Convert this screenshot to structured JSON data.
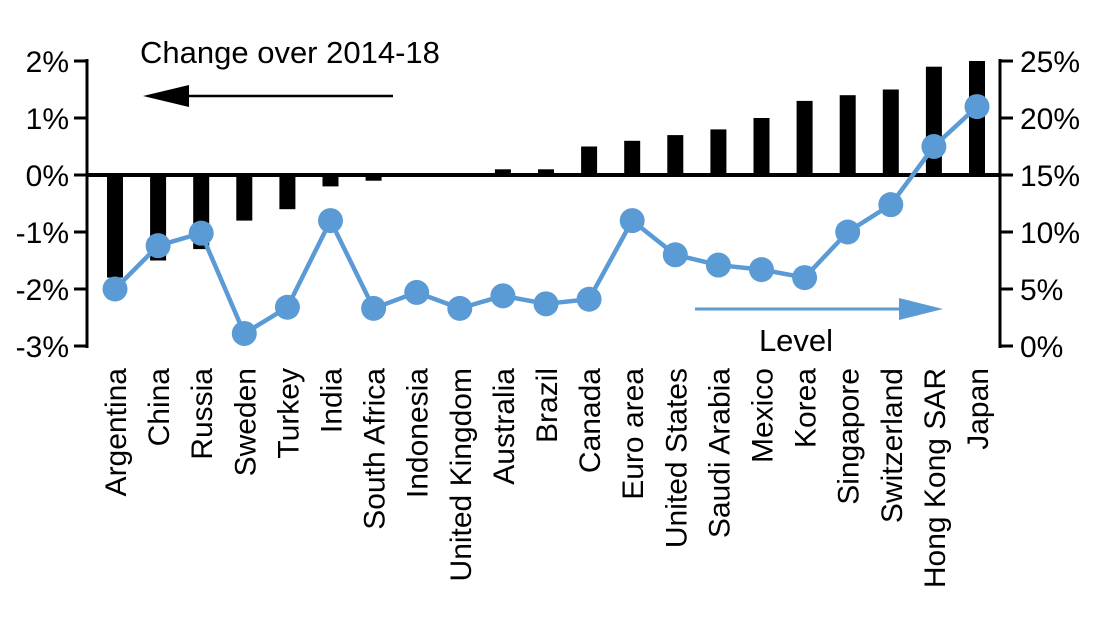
{
  "chart_data": {
    "type": "bar",
    "subtype": "combo-bar-line-dual-axis",
    "categories": [
      "Argentina",
      "China",
      "Russia",
      "Sweden",
      "Turkey",
      "India",
      "South Africa",
      "Indonesia",
      "United Kingdom",
      "Australia",
      "Brazil",
      "Canada",
      "Euro area",
      "United States",
      "Saudi Arabia",
      "Mexico",
      "Korea",
      "Singapore",
      "Switzerland",
      "Hong Kong SAR",
      "Japan"
    ],
    "series": [
      {
        "name": "Change over 2014-18",
        "type": "bar",
        "axis": "left",
        "color": "#000000",
        "values": [
          -1.8,
          -1.5,
          -1.3,
          -0.8,
          -0.6,
          -0.2,
          -0.1,
          0.0,
          0.0,
          0.1,
          0.1,
          0.5,
          0.6,
          0.7,
          0.8,
          1.0,
          1.3,
          1.4,
          1.5,
          1.9,
          2.0
        ]
      },
      {
        "name": "Level",
        "type": "line",
        "axis": "right",
        "color": "#5B9BD5",
        "values": [
          5.0,
          8.8,
          9.9,
          1.1,
          3.4,
          11.0,
          3.3,
          4.7,
          3.3,
          4.4,
          3.7,
          4.1,
          11.0,
          8.0,
          7.1,
          6.7,
          6.0,
          10.0,
          12.4,
          17.5,
          21.0
        ]
      }
    ],
    "left_axis": {
      "min": -3,
      "max": 2,
      "step": 1,
      "tick_labels": [
        "2%",
        "1%",
        "0%",
        "-1%",
        "-2%",
        "-3%"
      ],
      "tick_values": [
        2,
        1,
        0,
        -1,
        -2,
        -3
      ]
    },
    "right_axis": {
      "min": 0,
      "max": 25,
      "step": 5,
      "tick_labels": [
        "25%",
        "20%",
        "15%",
        "10%",
        "5%",
        "0%"
      ],
      "tick_values": [
        25,
        20,
        15,
        10,
        5,
        0
      ]
    },
    "annotations": {
      "left": {
        "text": "Change over 2014-18",
        "arrow_direction": "left",
        "arrow_color": "#000000"
      },
      "right": {
        "text": "Level",
        "arrow_direction": "right",
        "arrow_color": "#5B9BD5"
      }
    },
    "colors": {
      "bar": "#000000",
      "line": "#5B9BD5"
    },
    "grid": "off",
    "legend_position": "none",
    "title": "",
    "xlabel": "",
    "ylabel": ""
  }
}
